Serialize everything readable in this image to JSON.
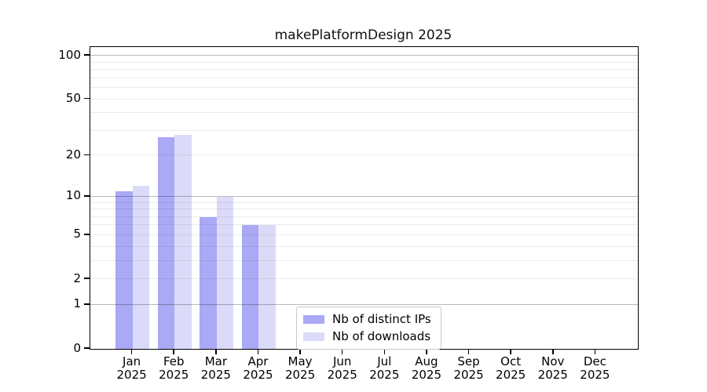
{
  "chart_data": {
    "type": "bar",
    "title": "makePlatformDesign 2025",
    "categories": [
      "Jan",
      "Feb",
      "Mar",
      "Apr",
      "May",
      "Jun",
      "Jul",
      "Aug",
      "Sep",
      "Oct",
      "Nov",
      "Dec"
    ],
    "category_year": "2025",
    "series": [
      {
        "name": "Nb of distinct IPs",
        "color": "#a9a9f5",
        "values": [
          11,
          27,
          7,
          6,
          0,
          0,
          0,
          0,
          0,
          0,
          0,
          0
        ]
      },
      {
        "name": "Nb of downloads",
        "color": "#dbdbf9",
        "values": [
          12,
          28,
          10,
          6,
          0,
          0,
          0,
          0,
          0,
          0,
          0,
          0
        ]
      }
    ],
    "yscale": "log10(1+v)",
    "ylim": [
      0,
      115
    ],
    "xlim_units": [
      -1,
      12
    ],
    "y_tick_values": [
      0,
      1,
      2,
      5,
      10,
      20,
      50,
      100
    ],
    "y_major_gridlines": [
      1,
      10,
      100
    ],
    "y_minor_gridlines": [
      2,
      3,
      4,
      5,
      6,
      7,
      8,
      9,
      20,
      30,
      40,
      50,
      60,
      70,
      80,
      90
    ],
    "grid": true,
    "legend_position": "lower-center inside plot",
    "colors": {
      "bar_dark": "#a9a9f5",
      "bar_light": "#dbdbf9",
      "axis": "#000000",
      "major_grid": "#b5b5b5",
      "minor_grid": "#ebebeb",
      "background": "#ffffff",
      "text": "#000000"
    }
  }
}
